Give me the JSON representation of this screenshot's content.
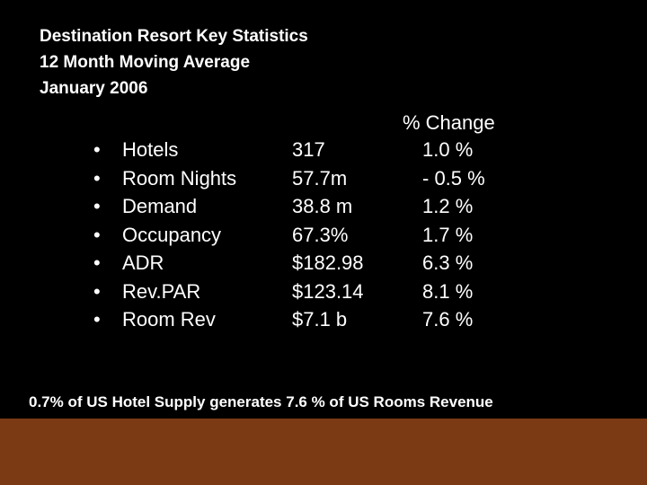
{
  "title": {
    "line1": "Destination Resort Key Statistics",
    "line2": "12 Month Moving Average",
    "line3": "January 2006"
  },
  "change_header": "% Change",
  "bullet_glyph": "•",
  "stats": [
    {
      "label": "Hotels",
      "value": "317",
      "change": "1.0 %"
    },
    {
      "label": "Room Nights",
      "value": "57.7m",
      "change": "- 0.5 %"
    },
    {
      "label": "Demand",
      "value": "38.8 m",
      "change": "1.2 %"
    },
    {
      "label": "Occupancy",
      "value": "67.3%",
      "change": "1.7 %"
    },
    {
      "label": "ADR",
      "value": "$182.98",
      "change": "6.3 %"
    },
    {
      "label": "Rev.PAR",
      "value": "$123.14",
      "change": "8.1 %"
    },
    {
      "label": "Room Rev",
      "value": "$7.1 b",
      "change": "7.6 %"
    }
  ],
  "footer_note": "0.7% of US Hotel Supply generates 7.6 % of US Rooms Revenue",
  "colors": {
    "background": "#000000",
    "text": "#ffffff",
    "bottom_bar": "#7c3a14"
  }
}
